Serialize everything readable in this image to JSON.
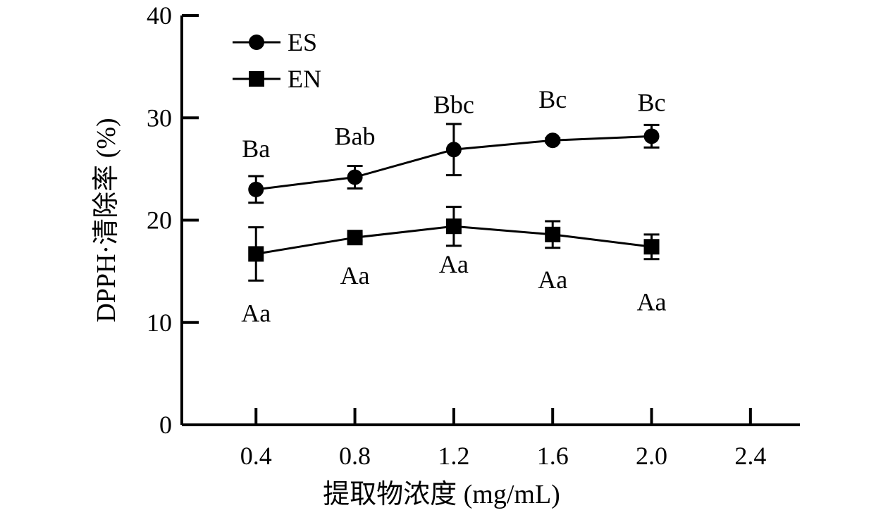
{
  "chart_data": {
    "type": "line",
    "title": "",
    "xlabel": "提取物浓度 (mg/mL)",
    "ylabel": "DPPH·清除率 (%)",
    "xlim": [
      0.1,
      2.6
    ],
    "ylim": [
      0,
      40
    ],
    "x_ticks": [
      0.4,
      0.8,
      1.2,
      1.6,
      2.0,
      2.4
    ],
    "x_tick_labels": [
      "0.4",
      "0.8",
      "1.2",
      "1.6",
      "2.0",
      "2.4"
    ],
    "y_ticks": [
      0,
      10,
      20,
      30,
      40
    ],
    "y_tick_labels": [
      "0",
      "10",
      "20",
      "30",
      "40"
    ],
    "grid": false,
    "legend_position": "top-left",
    "series": [
      {
        "name": "ES",
        "marker": "circle",
        "color": "#000000",
        "x": [
          0.4,
          0.8,
          1.2,
          1.6,
          2.0
        ],
        "y": [
          23.0,
          24.2,
          26.9,
          27.8,
          28.2
        ],
        "error": [
          1.3,
          1.1,
          2.5,
          0.2,
          1.1
        ],
        "labels": [
          "Ba",
          "Bab",
          "Bbc",
          "Bc",
          "Bc"
        ]
      },
      {
        "name": "EN",
        "marker": "square",
        "color": "#000000",
        "x": [
          0.4,
          0.8,
          1.2,
          1.6,
          2.0
        ],
        "y": [
          16.7,
          18.3,
          19.4,
          18.6,
          17.4
        ],
        "error": [
          2.6,
          0.3,
          1.9,
          1.3,
          1.2
        ],
        "labels": [
          "Aa",
          "Aa",
          "Aa",
          "Aa",
          "Aa"
        ]
      }
    ]
  }
}
